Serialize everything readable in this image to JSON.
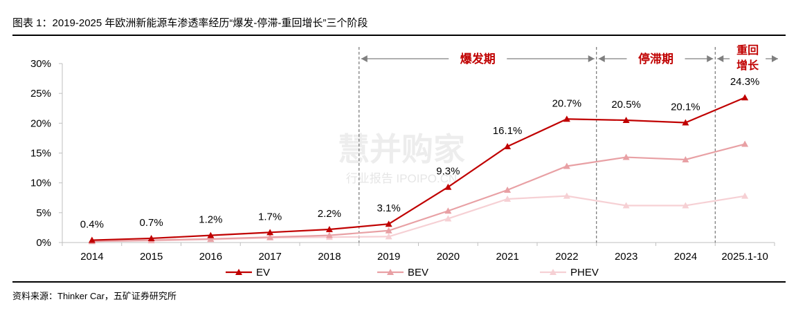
{
  "header": {
    "title": "图表 1：2019-2025 年欧洲新能源车渗透率经历“爆发-停滞-重回增长”三个阶段"
  },
  "footer": {
    "source": "资料来源：Thinker Car，五矿证券研究所"
  },
  "watermark": {
    "line1": "慧并购家",
    "line2": "行业报告 IPOIPO.CN"
  },
  "chart_data": {
    "type": "line",
    "categories": [
      "2014",
      "2015",
      "2016",
      "2017",
      "2018",
      "2019",
      "2020",
      "2021",
      "2022",
      "2023",
      "2024",
      "2025.1-10"
    ],
    "ylim": [
      0,
      30
    ],
    "yticks": [
      0,
      5,
      10,
      15,
      20,
      25,
      30
    ],
    "ytick_labels": [
      "0%",
      "5%",
      "10%",
      "15%",
      "20%",
      "25%",
      "30%"
    ],
    "series": [
      {
        "name": "EV",
        "color": "#c00000",
        "values": [
          0.4,
          0.7,
          1.2,
          1.7,
          2.2,
          3.1,
          9.3,
          16.1,
          20.7,
          20.5,
          20.1,
          24.3
        ],
        "labels": [
          "0.4%",
          "0.7%",
          "1.2%",
          "1.7%",
          "2.2%",
          "3.1%",
          "9.3%",
          "16.1%",
          "20.7%",
          "20.5%",
          "20.1%",
          "24.3%"
        ]
      },
      {
        "name": "BEV",
        "color": "#e8a0a4",
        "values": [
          0.2,
          0.4,
          0.6,
          0.9,
          1.2,
          2.0,
          5.3,
          8.8,
          12.8,
          14.3,
          13.9,
          16.5
        ]
      },
      {
        "name": "PHEV",
        "color": "#f6d0d4",
        "values": [
          0.2,
          0.3,
          0.5,
          0.8,
          0.9,
          1.0,
          4.0,
          7.3,
          7.8,
          6.2,
          6.2,
          7.8
        ]
      }
    ],
    "phases": [
      {
        "label": "爆发期",
        "from": "2019",
        "to": "2022"
      },
      {
        "label": "停滞期",
        "from": "2022",
        "to": "2024"
      },
      {
        "label": "重回增长",
        "from": "2024",
        "to": "2025.1-10"
      }
    ],
    "legend_position": "bottom",
    "grid": false
  }
}
